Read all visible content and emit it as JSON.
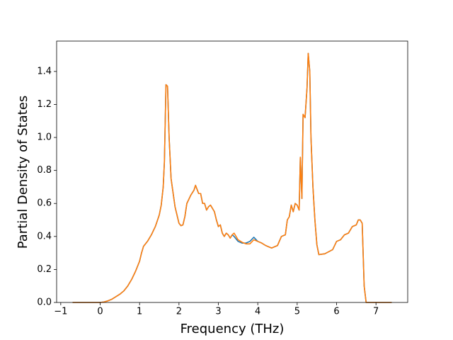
{
  "chart_data": {
    "type": "line",
    "xlabel": "Frequency (THz)",
    "ylabel": "Partial Density of States",
    "x": [
      -0.7,
      0,
      0.1,
      0.2,
      0.3,
      0.4,
      0.5,
      0.6,
      0.7,
      0.8,
      0.9,
      1.0,
      1.05,
      1.1,
      1.2,
      1.3,
      1.4,
      1.5,
      1.55,
      1.6,
      1.63,
      1.67,
      1.71,
      1.75,
      1.8,
      1.9,
      2.0,
      2.05,
      2.1,
      2.15,
      2.2,
      2.3,
      2.38,
      2.42,
      2.5,
      2.55,
      2.6,
      2.65,
      2.7,
      2.75,
      2.8,
      2.9,
      2.95,
      3.0,
      3.05,
      3.1,
      3.15,
      3.2,
      3.25,
      3.3,
      3.35,
      3.4,
      3.5,
      3.6,
      3.7,
      3.8,
      3.9,
      4.0,
      4.1,
      4.2,
      4.3,
      4.35,
      4.4,
      4.5,
      4.6,
      4.7,
      4.75,
      4.8,
      4.85,
      4.9,
      4.95,
      5.0,
      5.05,
      5.08,
      5.12,
      5.15,
      5.2,
      5.25,
      5.28,
      5.32,
      5.35,
      5.4,
      5.45,
      5.5,
      5.55,
      5.7,
      5.9,
      6.0,
      6.1,
      6.2,
      6.3,
      6.4,
      6.5,
      6.55,
      6.6,
      6.65,
      6.7,
      6.75,
      7.4
    ],
    "series": [
      {
        "color": "#1f77b4",
        "values": [
          0,
          0,
          0.003,
          0.01,
          0.02,
          0.035,
          0.05,
          0.07,
          0.1,
          0.14,
          0.19,
          0.25,
          0.3,
          0.34,
          0.37,
          0.41,
          0.46,
          0.53,
          0.59,
          0.7,
          0.85,
          1.32,
          1.31,
          1.0,
          0.75,
          0.58,
          0.48,
          0.465,
          0.47,
          0.52,
          0.6,
          0.65,
          0.68,
          0.71,
          0.66,
          0.66,
          0.6,
          0.6,
          0.56,
          0.58,
          0.59,
          0.55,
          0.5,
          0.46,
          0.47,
          0.42,
          0.4,
          0.42,
          0.41,
          0.39,
          0.41,
          0.4,
          0.37,
          0.36,
          0.36,
          0.37,
          0.395,
          0.37,
          0.36,
          0.345,
          0.335,
          0.33,
          0.335,
          0.345,
          0.4,
          0.41,
          0.5,
          0.52,
          0.59,
          0.55,
          0.6,
          0.59,
          0.56,
          0.88,
          0.63,
          1.14,
          1.12,
          1.3,
          1.51,
          1.4,
          1.0,
          0.7,
          0.5,
          0.35,
          0.29,
          0.295,
          0.32,
          0.37,
          0.38,
          0.41,
          0.42,
          0.46,
          0.47,
          0.5,
          0.5,
          0.48,
          0.1,
          0,
          0
        ]
      },
      {
        "color": "#ff7f0e",
        "values": [
          0,
          0,
          0.003,
          0.01,
          0.02,
          0.035,
          0.05,
          0.07,
          0.1,
          0.14,
          0.19,
          0.25,
          0.3,
          0.34,
          0.37,
          0.41,
          0.46,
          0.53,
          0.59,
          0.7,
          0.85,
          1.32,
          1.31,
          1.0,
          0.75,
          0.58,
          0.48,
          0.465,
          0.47,
          0.52,
          0.6,
          0.65,
          0.68,
          0.71,
          0.66,
          0.66,
          0.6,
          0.6,
          0.56,
          0.58,
          0.59,
          0.55,
          0.5,
          0.46,
          0.47,
          0.42,
          0.4,
          0.42,
          0.41,
          0.39,
          0.41,
          0.42,
          0.38,
          0.365,
          0.355,
          0.355,
          0.38,
          0.37,
          0.36,
          0.345,
          0.335,
          0.33,
          0.335,
          0.345,
          0.4,
          0.41,
          0.5,
          0.52,
          0.59,
          0.55,
          0.6,
          0.59,
          0.56,
          0.88,
          0.63,
          1.14,
          1.12,
          1.3,
          1.51,
          1.4,
          1.0,
          0.7,
          0.5,
          0.35,
          0.29,
          0.295,
          0.32,
          0.37,
          0.38,
          0.41,
          0.42,
          0.46,
          0.47,
          0.5,
          0.5,
          0.48,
          0.1,
          0,
          0
        ]
      }
    ],
    "xlim": [
      -1.105,
      7.805
    ],
    "xticks": [
      {
        "value": -1,
        "label": "−1"
      },
      0,
      1,
      2,
      3,
      4,
      5,
      6,
      7
    ],
    "ylim": [
      0,
      1.584
    ],
    "yticks": [
      {
        "value": 0,
        "label": "0.0"
      },
      {
        "value": 0.2,
        "label": "0.2"
      },
      {
        "value": 0.4,
        "label": "0.4"
      },
      {
        "value": 0.6,
        "label": "0.6"
      },
      {
        "value": 0.8,
        "label": "0.8"
      },
      {
        "value": 1.0,
        "label": "1.0"
      },
      {
        "value": 1.2,
        "label": "1.2"
      },
      {
        "value": 1.4,
        "label": "1.4"
      }
    ]
  }
}
